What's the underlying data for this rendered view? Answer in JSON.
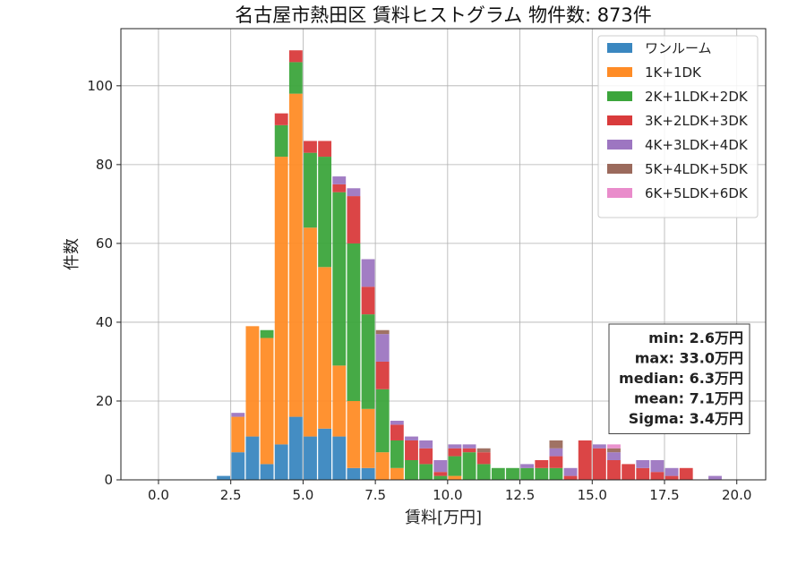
{
  "chart_data": {
    "type": "bar",
    "title": "名古屋市熱田区 賃料ヒストグラム  物件数: 873件",
    "xlabel": "賃料[万円]",
    "ylabel": "件数",
    "xlim": [
      -1.3,
      21.0
    ],
    "ylim": [
      0,
      114.5
    ],
    "x_ticks": [
      0.0,
      2.5,
      5.0,
      7.5,
      10.0,
      12.5,
      15.0,
      17.5,
      20.0
    ],
    "x_tick_labels": [
      "0.0",
      "2.5",
      "5.0",
      "7.5",
      "10.0",
      "12.5",
      "15.0",
      "17.5",
      "20.0"
    ],
    "y_ticks": [
      0,
      20,
      40,
      60,
      80,
      100
    ],
    "y_tick_labels": [
      "0",
      "20",
      "40",
      "60",
      "80",
      "100"
    ],
    "grid": true,
    "stacked": true,
    "bin_width": 0.5,
    "bar_width": 0.46,
    "legend_position": "top-right",
    "bins": [
      2.25,
      2.75,
      3.25,
      3.75,
      4.25,
      4.75,
      5.25,
      5.75,
      6.25,
      6.75,
      7.25,
      7.75,
      8.25,
      8.75,
      9.25,
      9.75,
      10.25,
      10.75,
      11.25,
      11.75,
      12.25,
      12.75,
      13.25,
      13.75,
      14.25,
      14.75,
      15.25,
      15.75,
      16.25,
      16.75,
      17.25,
      17.75,
      18.25,
      18.75,
      19.25,
      19.75
    ],
    "series": [
      {
        "name": "ワンルーム",
        "color": "#3a87c0",
        "values": [
          1,
          7,
          11,
          4,
          9,
          16,
          11,
          13,
          11,
          3,
          3,
          0,
          0,
          0,
          0,
          0,
          0,
          0,
          0,
          0,
          0,
          0,
          0,
          0,
          0,
          0,
          0,
          0,
          0,
          0,
          0,
          0,
          0,
          0,
          0,
          0
        ]
      },
      {
        "name": "1K+1DK",
        "color": "#ff8c26",
        "values": [
          0,
          9,
          28,
          32,
          73,
          82,
          53,
          41,
          18,
          17,
          15,
          7,
          3,
          0,
          0,
          0,
          1,
          0,
          0,
          0,
          0,
          0,
          0,
          0,
          0,
          0,
          0,
          0,
          0,
          0,
          0,
          0,
          0,
          0,
          0,
          0
        ]
      },
      {
        "name": "2K+1LDK+2DK",
        "color": "#3ca53c",
        "values": [
          0,
          0,
          0,
          2,
          8,
          8,
          19,
          28,
          44,
          40,
          24,
          16,
          7,
          5,
          4,
          1,
          5,
          7,
          4,
          3,
          3,
          3,
          3,
          3,
          0,
          0,
          0,
          0,
          0,
          0,
          0,
          0,
          0,
          0,
          0,
          0
        ]
      },
      {
        "name": "3K+2LDK+3DK",
        "color": "#d93b3c",
        "values": [
          0,
          0,
          0,
          0,
          3,
          3,
          3,
          4,
          2,
          12,
          7,
          7,
          4,
          5,
          4,
          1,
          2,
          1,
          3,
          0,
          0,
          0,
          2,
          3,
          1,
          10,
          8,
          5,
          4,
          3,
          2,
          1,
          3,
          0,
          0,
          0
        ]
      },
      {
        "name": "4K+3LDK+4DK",
        "color": "#9d76c1",
        "values": [
          0,
          1,
          0,
          0,
          0,
          0,
          0,
          0,
          2,
          2,
          7,
          7,
          1,
          1,
          2,
          3,
          1,
          1,
          0,
          0,
          0,
          1,
          0,
          2,
          2,
          0,
          1,
          2,
          0,
          2,
          3,
          2,
          0,
          0,
          1,
          0
        ]
      },
      {
        "name": "5K+4LDK+5DK",
        "color": "#9b6a5c",
        "values": [
          0,
          0,
          0,
          0,
          0,
          0,
          0,
          0,
          0,
          0,
          0,
          1,
          0,
          0,
          0,
          0,
          0,
          0,
          1,
          0,
          0,
          0,
          0,
          2,
          0,
          0,
          0,
          1,
          0,
          0,
          0,
          0,
          0,
          0,
          0,
          0
        ]
      },
      {
        "name": "6K+5LDK+6DK",
        "color": "#e98ccb",
        "values": [
          0,
          0,
          0,
          0,
          0,
          0,
          0,
          0,
          0,
          0,
          0,
          0,
          0,
          0,
          0,
          0,
          0,
          0,
          0,
          0,
          0,
          0,
          0,
          0,
          0,
          0,
          0,
          1,
          0,
          0,
          0,
          0,
          0,
          0,
          0,
          0
        ]
      }
    ],
    "stats": [
      "min: 2.6万円",
      "max: 33.0万円",
      "median: 6.3万円",
      "mean: 7.1万円",
      "Sigma: 3.4万円"
    ]
  }
}
